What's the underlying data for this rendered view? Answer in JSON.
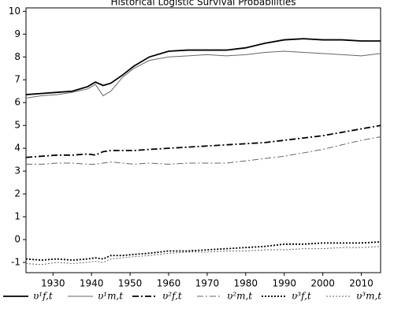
{
  "chart_data": {
    "type": "line",
    "title": "Historical Logistic Survival Probabilities",
    "x": [
      1923,
      1927,
      1931,
      1935,
      1939,
      1941,
      1943,
      1945,
      1948,
      1951,
      1955,
      1960,
      1965,
      1970,
      1975,
      1980,
      1985,
      1990,
      1995,
      2000,
      2005,
      2010,
      2015
    ],
    "series": [
      {
        "name": "υ¹f,t",
        "color": "#000000",
        "linewidth": 1.8,
        "linestyle": "solid",
        "values": [
          6.35,
          6.4,
          6.45,
          6.5,
          6.7,
          6.9,
          6.75,
          6.85,
          7.2,
          7.6,
          8.0,
          8.25,
          8.3,
          8.3,
          8.3,
          8.4,
          8.6,
          8.75,
          8.8,
          8.75,
          8.75,
          8.7,
          8.7
        ]
      },
      {
        "name": "υ¹m,t",
        "color": "#666666",
        "linewidth": 1,
        "linestyle": "solid",
        "values": [
          6.2,
          6.3,
          6.35,
          6.45,
          6.6,
          6.8,
          6.3,
          6.5,
          7.1,
          7.5,
          7.85,
          8.0,
          8.05,
          8.1,
          8.05,
          8.1,
          8.2,
          8.25,
          8.2,
          8.15,
          8.1,
          8.05,
          8.15
        ]
      },
      {
        "name": "υ²f,t",
        "color": "#000000",
        "linewidth": 1.8,
        "linestyle": "dashdot",
        "values": [
          3.6,
          3.65,
          3.7,
          3.7,
          3.75,
          3.7,
          3.85,
          3.9,
          3.9,
          3.9,
          3.95,
          4.0,
          4.05,
          4.1,
          4.15,
          4.2,
          4.25,
          4.35,
          4.45,
          4.55,
          4.7,
          4.85,
          5.0
        ]
      },
      {
        "name": "υ²m,t",
        "color": "#666666",
        "linewidth": 1,
        "linestyle": "dashdot",
        "values": [
          3.3,
          3.3,
          3.35,
          3.35,
          3.3,
          3.3,
          3.35,
          3.4,
          3.35,
          3.3,
          3.35,
          3.3,
          3.35,
          3.35,
          3.35,
          3.45,
          3.55,
          3.65,
          3.8,
          3.95,
          4.15,
          4.35,
          4.5
        ]
      },
      {
        "name": "υ³f,t",
        "color": "#000000",
        "linewidth": 1.8,
        "linestyle": "dotted",
        "values": [
          -0.85,
          -0.9,
          -0.85,
          -0.9,
          -0.85,
          -0.8,
          -0.85,
          -0.7,
          -0.7,
          -0.65,
          -0.6,
          -0.5,
          -0.5,
          -0.45,
          -0.4,
          -0.35,
          -0.3,
          -0.2,
          -0.2,
          -0.15,
          -0.15,
          -0.15,
          -0.1
        ]
      },
      {
        "name": "υ³m,t",
        "color": "#666666",
        "linewidth": 1,
        "linestyle": "dotted",
        "values": [
          -1.05,
          -1.1,
          -1.0,
          -1.05,
          -1.0,
          -0.95,
          -1.0,
          -0.85,
          -0.8,
          -0.75,
          -0.7,
          -0.6,
          -0.55,
          -0.55,
          -0.5,
          -0.5,
          -0.45,
          -0.45,
          -0.4,
          -0.4,
          -0.35,
          -0.35,
          -0.3
        ]
      }
    ],
    "xlim": [
      1923,
      2015
    ],
    "xticks": [
      1930,
      1940,
      1950,
      1960,
      1970,
      1980,
      1990,
      2000,
      2010
    ],
    "ylim": [
      -1.45,
      10.15
    ],
    "yticks": [
      -1,
      0,
      1,
      2,
      3,
      4,
      5,
      6,
      7,
      8,
      9,
      10
    ],
    "grid": false,
    "legend": "bottom"
  }
}
